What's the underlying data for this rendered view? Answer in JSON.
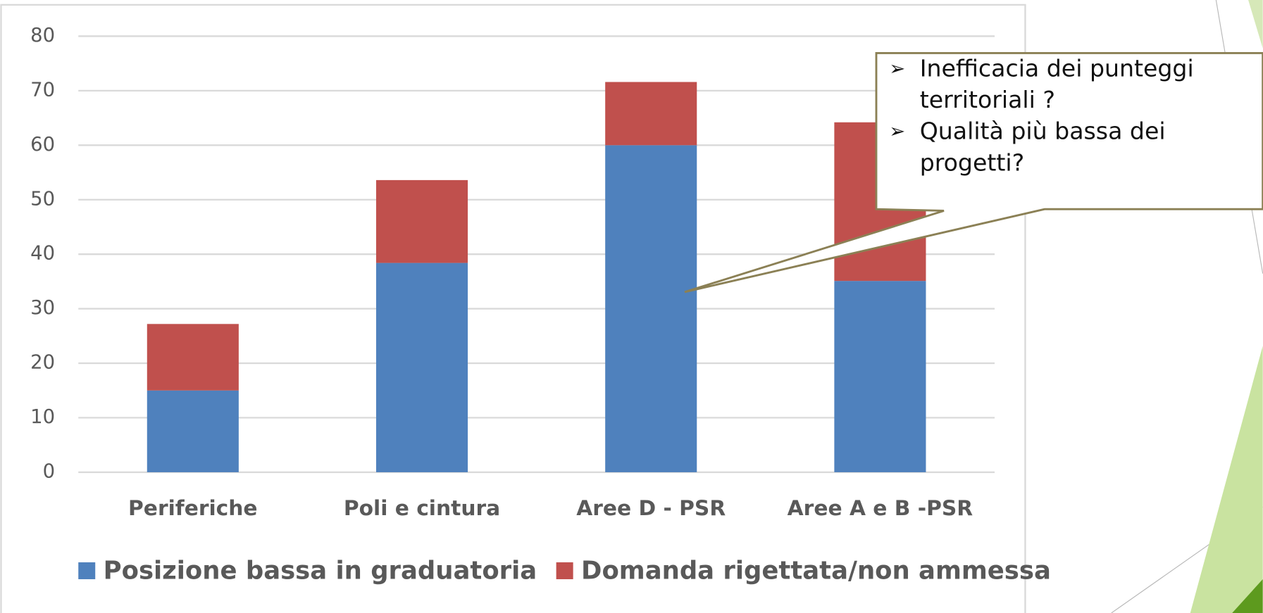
{
  "chart_data": {
    "type": "bar",
    "stacked": true,
    "categories": [
      "Periferiche",
      "Poli e cintura",
      "Aree D - PSR",
      "Aree A e B -PSR"
    ],
    "series": [
      {
        "name": "Posizione bassa in graduatoria",
        "color": "#4f81bd",
        "values": [
          15,
          38.4,
          60,
          35.1
        ]
      },
      {
        "name": "Domanda rigettata/non ammessa",
        "color": "#c0504d",
        "values": [
          12.2,
          15.2,
          11.6,
          29.1
        ]
      }
    ],
    "ylim": [
      0,
      80
    ],
    "yticks": [
      0,
      10,
      20,
      30,
      40,
      50,
      60,
      70,
      80
    ],
    "grid": true,
    "legend": "bottom",
    "annotations": [
      "Inefficacia dei punteggi territoriali ?",
      "Qualità più bassa dei progetti?"
    ]
  }
}
